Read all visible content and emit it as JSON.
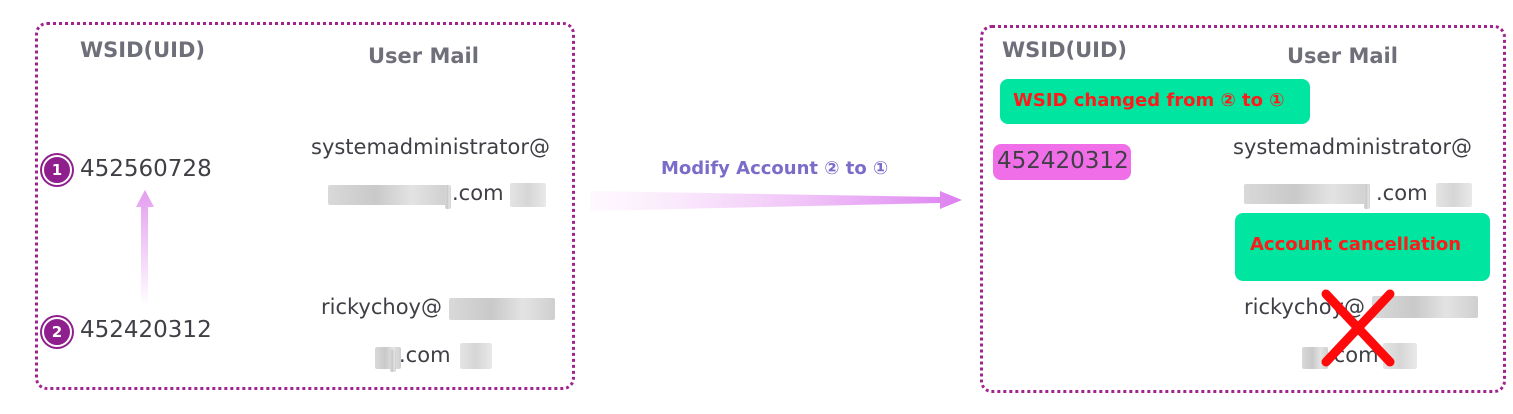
{
  "left_panel": {
    "uid_header": "WSID(UID)",
    "mail_header": "User Mail",
    "rows": [
      {
        "badge": "1",
        "uid": "452560728",
        "mail_line1": "systemadministrator@",
        "mail_line2": ".com"
      },
      {
        "badge": "2",
        "uid": "452420312",
        "mail_line1": "rickychoy@",
        "mail_line2": ".com"
      }
    ]
  },
  "middle": {
    "arrow_label": "Modify Account ② to ①"
  },
  "right_panel": {
    "uid_header": "WSID(UID)",
    "mail_header": "User Mail",
    "wsid_changed_label": "WSID changed from ② to ①",
    "uid": "452420312",
    "mail1_line1": "systemadministrator@",
    "mail1_line2": ".com",
    "cancellation_label": "Account cancellation",
    "mail2_line1": "rickychoy@",
    "mail2_line2": ".com"
  },
  "colors": {
    "panel_border": "#a0248f",
    "badge": "#8f1f8d",
    "green": "#00e6a0",
    "pink": "#f06ee8",
    "red": "#ff1a1a",
    "arrow": "#e49cf0"
  },
  "icons": [
    "red-cross-icon",
    "arrow-up-icon",
    "arrow-right-icon"
  ]
}
